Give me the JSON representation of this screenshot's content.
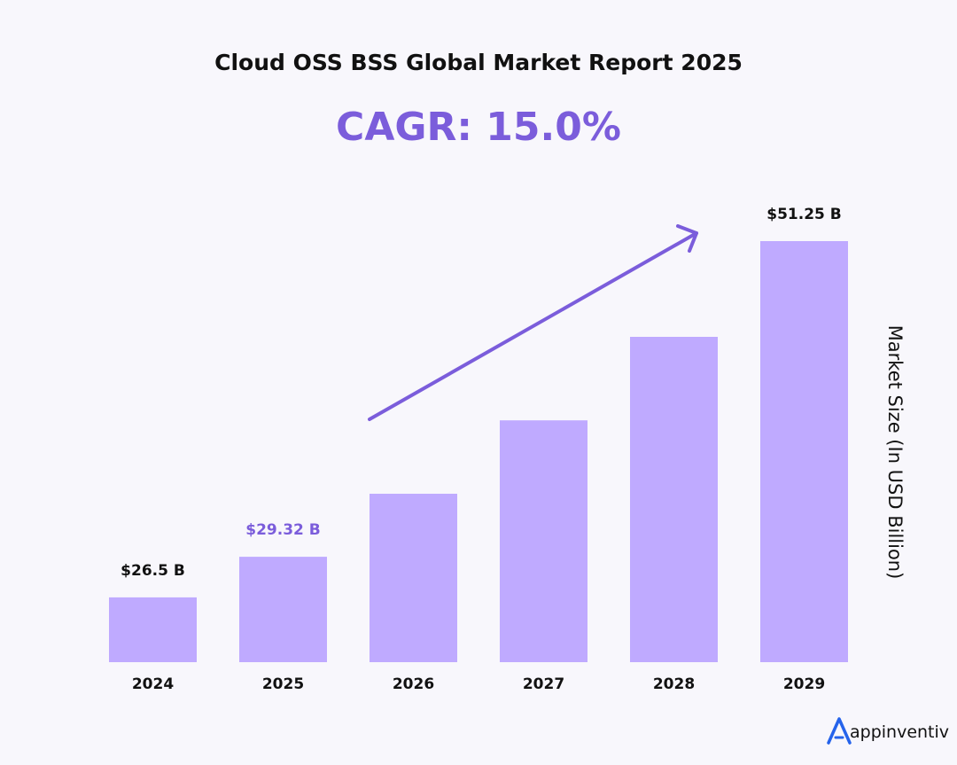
{
  "header": {
    "cagr_text": "CAGR: 15.0%"
  },
  "brand": {
    "name": "appinventiv",
    "logo_icon": "appinventiv-logo-icon"
  },
  "colors": {
    "bar": "#bfaaff",
    "accent": "#7b5ddb",
    "text": "#111111",
    "background": "#f8f7fc",
    "logo": "#2563eb"
  },
  "trend_arrow": {
    "icon": "trend-arrow-icon",
    "from_category": "2026",
    "to_category": "2029"
  },
  "chart_data": {
    "type": "bar",
    "title": "Cloud OSS BSS Global Market Report 2025",
    "xlabel": "",
    "ylabel": "Market Size (In USD Billion)",
    "categories": [
      "2024",
      "2025",
      "2026",
      "2027",
      "2028",
      "2029"
    ],
    "values": [
      26.5,
      29.32,
      33.7,
      38.8,
      44.6,
      51.25
    ],
    "data_labels": [
      {
        "index": 0,
        "text": "$26.5 B",
        "highlight": false
      },
      {
        "index": 1,
        "text": "$29.32 B",
        "highlight": true
      },
      {
        "index": 5,
        "text": "$51.25 B",
        "highlight": false
      }
    ],
    "ylim": [
      22,
      53
    ],
    "grid": false,
    "legend": "none"
  }
}
